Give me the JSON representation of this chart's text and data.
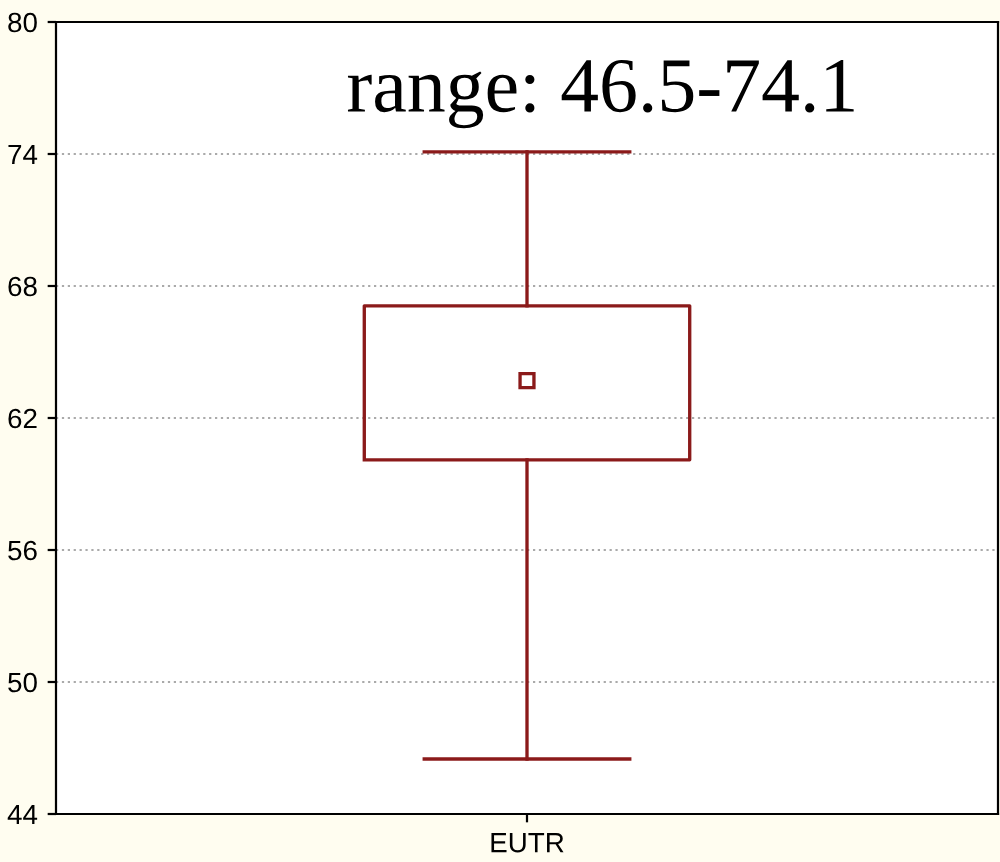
{
  "chart_data": {
    "type": "box",
    "categories": [
      "EUTR"
    ],
    "boxes": [
      {
        "low": 46.5,
        "q1": 60.1,
        "median": 63.7,
        "q3": 67.1,
        "high": 74.1
      }
    ],
    "color": "#8b1a1a",
    "ylim": [
      44,
      80
    ],
    "yticks": [
      44,
      50,
      56,
      62,
      68,
      74,
      80
    ],
    "grid": "y",
    "marker": "square",
    "annotations": [
      "range: 46.5-74.1"
    ]
  }
}
